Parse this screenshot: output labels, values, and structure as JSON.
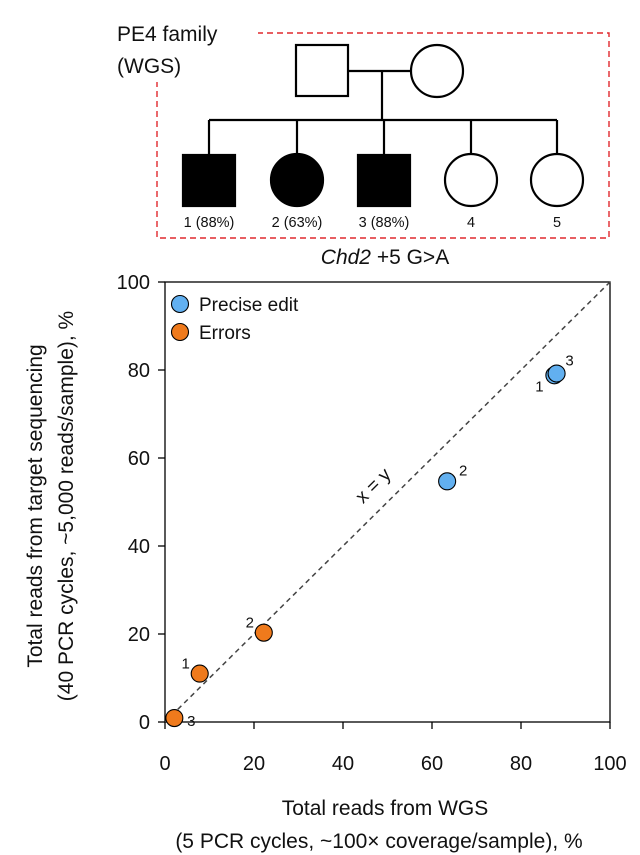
{
  "pedigree": {
    "family_label_line1": "PE4 family",
    "family_label_line2": "(WGS)",
    "children": [
      {
        "label": "1 (88%)",
        "sex": "male",
        "affected": true
      },
      {
        "label": "2 (63%)",
        "sex": "female",
        "affected": true
      },
      {
        "label": "3 (88%)",
        "sex": "male",
        "affected": true
      },
      {
        "label": "4",
        "sex": "female",
        "affected": false
      },
      {
        "label": "5",
        "sex": "female",
        "affected": false
      }
    ],
    "colors": {
      "affected": "#000000",
      "box": "#e0282e"
    }
  },
  "chart_data": {
    "type": "scatter",
    "title_italic": "Chd2",
    "title_rest": " +5 G>A",
    "xlabel_line1": "Total reads from WGS",
    "xlabel_line2": "(5 PCR cycles, ~100× coverage/sample), %",
    "ylabel_line1": "Total reads from target sequencing",
    "ylabel_line2": "(40 PCR cycles, ~5,000 reads/sample), %",
    "xlim": [
      0,
      100
    ],
    "ylim": [
      0,
      100
    ],
    "xticks": [
      0,
      20,
      40,
      60,
      80,
      100
    ],
    "yticks": [
      0,
      20,
      40,
      60,
      80,
      100
    ],
    "grid": false,
    "legend_position": "top-left",
    "diagonal_label": "x = y",
    "series": [
      {
        "name": "Precise edit",
        "color": "#62b0f0",
        "points": [
          {
            "x": 87.5,
            "y": 78.8,
            "label": "1"
          },
          {
            "x": 63.4,
            "y": 54.7,
            "label": "2"
          },
          {
            "x": 88.0,
            "y": 79.2,
            "label": "3"
          }
        ]
      },
      {
        "name": "Errors",
        "color": "#ef7a1c",
        "points": [
          {
            "x": 7.8,
            "y": 11.0,
            "label": "1"
          },
          {
            "x": 22.2,
            "y": 20.3,
            "label": "2"
          },
          {
            "x": 2.1,
            "y": 0.9,
            "label": "3"
          }
        ]
      }
    ]
  }
}
